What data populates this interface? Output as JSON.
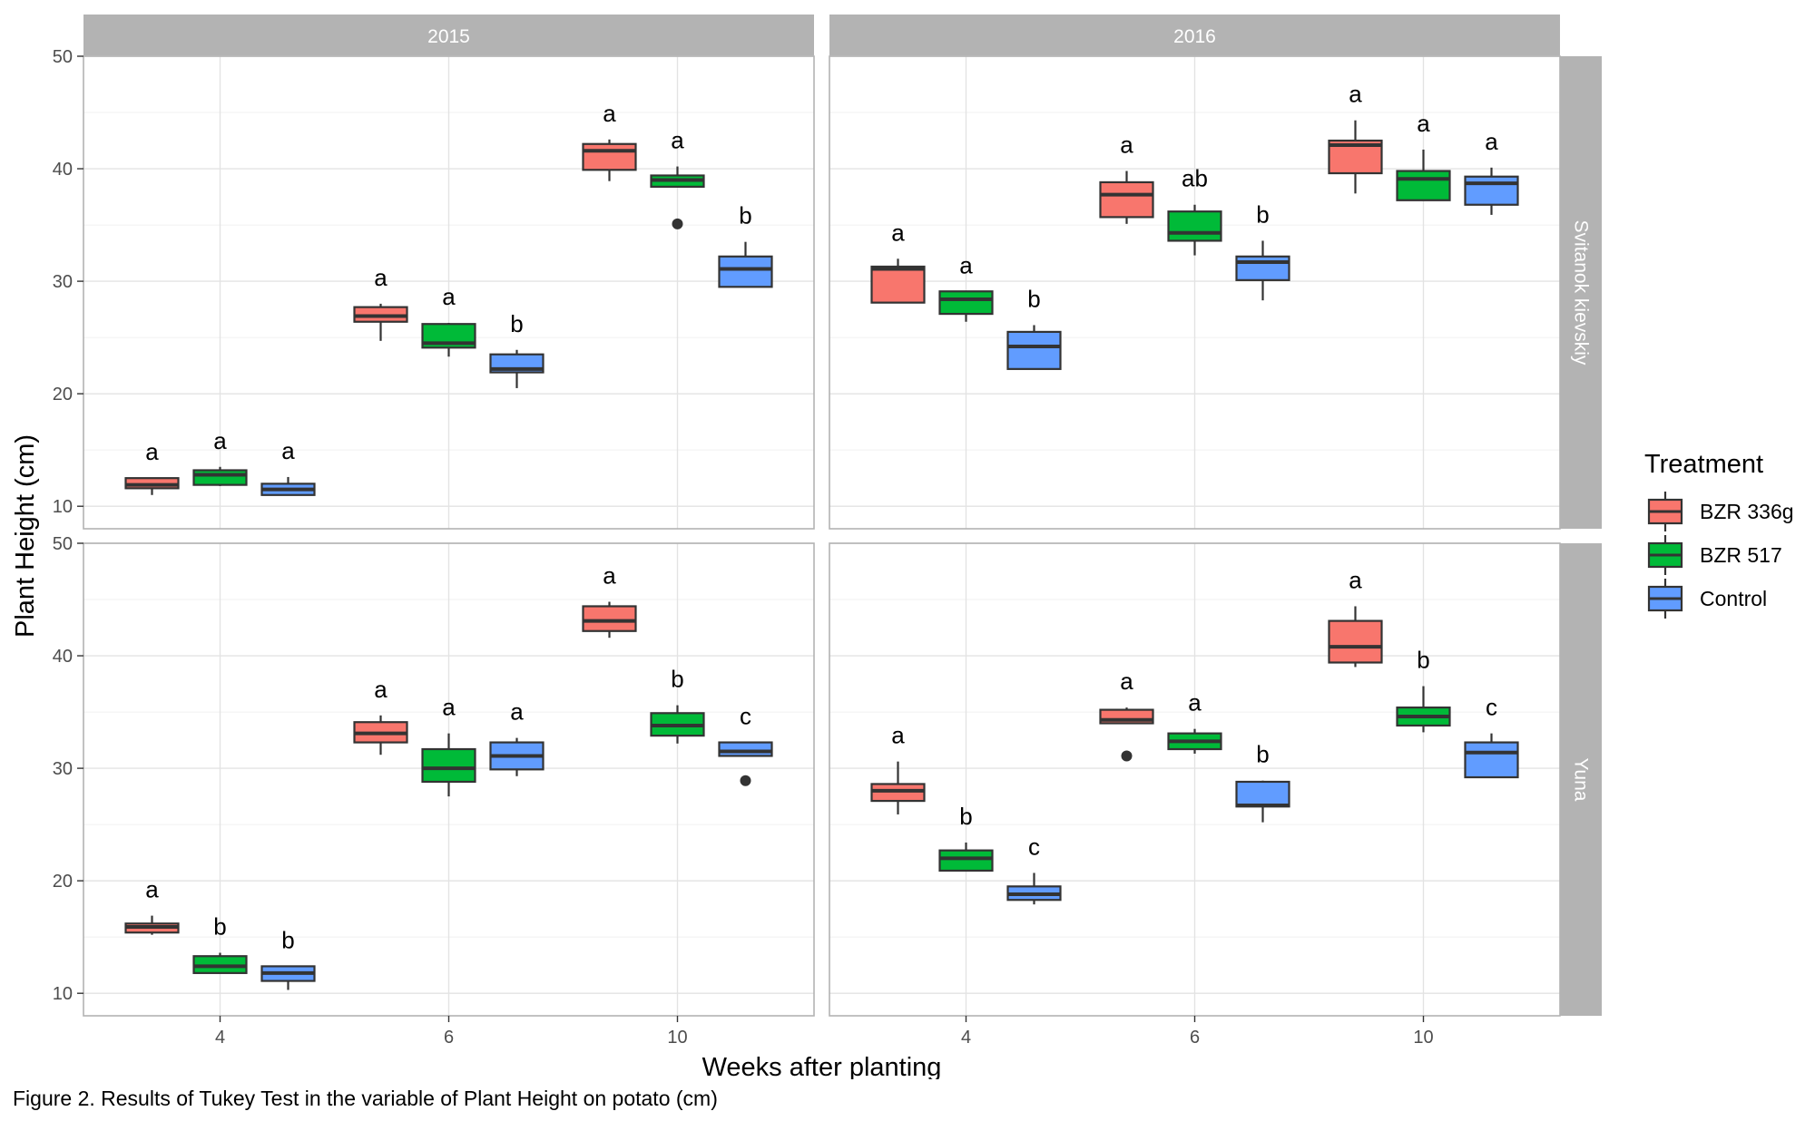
{
  "caption": "Figure 2. Results of Tukey Test in the variable of Plant Height on potato (cm)",
  "chart_data": {
    "type": "boxplot",
    "title": "",
    "xlabel": "Weeks after planting",
    "ylabel": "Plant Height (cm)",
    "ylim": [
      8,
      50
    ],
    "yticks": [
      10,
      20,
      30,
      40,
      50
    ],
    "x_categories": [
      "4",
      "6",
      "10"
    ],
    "column_facets": [
      "2015",
      "2016"
    ],
    "row_facets": [
      "Svitanok kievskiy",
      "Yuna"
    ],
    "grid": true,
    "legend": {
      "title": "Treatment",
      "position": "right",
      "items": [
        {
          "name": "BZR 336g",
          "color": "#F8766D"
        },
        {
          "name": "BZR 517",
          "color": "#00BA38"
        },
        {
          "name": "Control",
          "color": "#619CFF"
        }
      ]
    },
    "panels": [
      {
        "year": "2015",
        "variety": "Svitanok kievskiy",
        "groups": [
          {
            "week": "4",
            "boxes": [
              {
                "treatment": "BZR 336g",
                "min": 11,
                "q1": 11.6,
                "median": 11.9,
                "q3": 12.5,
                "max": 12.5,
                "letter": "a",
                "outliers": []
              },
              {
                "treatment": "BZR 517",
                "min": 11.8,
                "q1": 11.9,
                "median": 12.8,
                "q3": 13.2,
                "max": 13.5,
                "letter": "a",
                "outliers": []
              },
              {
                "treatment": "Control",
                "min": 11,
                "q1": 11,
                "median": 11.5,
                "q3": 12,
                "max": 12.6,
                "letter": "a",
                "outliers": []
              }
            ]
          },
          {
            "week": "6",
            "boxes": [
              {
                "treatment": "BZR 336g",
                "min": 24.7,
                "q1": 26.4,
                "median": 26.9,
                "q3": 27.7,
                "max": 28,
                "letter": "a",
                "outliers": []
              },
              {
                "treatment": "BZR 517",
                "min": 23.3,
                "q1": 24.1,
                "median": 24.5,
                "q3": 26.2,
                "max": 26.3,
                "letter": "a",
                "outliers": []
              },
              {
                "treatment": "Control",
                "min": 20.5,
                "q1": 21.9,
                "median": 22.2,
                "q3": 23.5,
                "max": 23.9,
                "letter": "b",
                "outliers": []
              }
            ]
          },
          {
            "week": "10",
            "boxes": [
              {
                "treatment": "BZR 336g",
                "min": 38.9,
                "q1": 39.9,
                "median": 41.6,
                "q3": 42.2,
                "max": 42.6,
                "letter": "a",
                "outliers": []
              },
              {
                "treatment": "BZR 517",
                "min": 38.4,
                "q1": 38.4,
                "median": 39,
                "q3": 39.4,
                "max": 40.2,
                "letter": "a",
                "outliers": [
                  35.1
                ]
              },
              {
                "treatment": "Control",
                "min": 29.5,
                "q1": 29.5,
                "median": 31.1,
                "q3": 32.2,
                "max": 33.5,
                "letter": "b",
                "outliers": []
              }
            ]
          }
        ]
      },
      {
        "year": "2016",
        "variety": "Svitanok kievskiy",
        "groups": [
          {
            "week": "4",
            "boxes": [
              {
                "treatment": "BZR 336g",
                "min": 28.1,
                "q1": 28.1,
                "median": 31.1,
                "q3": 31.3,
                "max": 32,
                "letter": "a",
                "outliers": []
              },
              {
                "treatment": "BZR 517",
                "min": 26.4,
                "q1": 27.1,
                "median": 28.4,
                "q3": 29.1,
                "max": 29.1,
                "letter": "a",
                "outliers": []
              },
              {
                "treatment": "Control",
                "min": 22.2,
                "q1": 22.2,
                "median": 24.2,
                "q3": 25.5,
                "max": 26.1,
                "letter": "b",
                "outliers": []
              }
            ]
          },
          {
            "week": "6",
            "boxes": [
              {
                "treatment": "BZR 336g",
                "min": 35.1,
                "q1": 35.7,
                "median": 37.7,
                "q3": 38.8,
                "max": 39.8,
                "letter": "a",
                "outliers": []
              },
              {
                "treatment": "BZR 517",
                "min": 32.3,
                "q1": 33.6,
                "median": 34.3,
                "q3": 36.2,
                "max": 36.8,
                "letter": "ab",
                "outliers": []
              },
              {
                "treatment": "Control",
                "min": 28.3,
                "q1": 30.1,
                "median": 31.7,
                "q3": 32.2,
                "max": 33.6,
                "letter": "b",
                "outliers": []
              }
            ]
          },
          {
            "week": "10",
            "boxes": [
              {
                "treatment": "BZR 336g",
                "min": 37.8,
                "q1": 39.6,
                "median": 42.1,
                "q3": 42.5,
                "max": 44.3,
                "letter": "a",
                "outliers": []
              },
              {
                "treatment": "BZR 517",
                "min": 37.2,
                "q1": 37.2,
                "median": 39.1,
                "q3": 39.8,
                "max": 41.7,
                "letter": "a",
                "outliers": []
              },
              {
                "treatment": "Control",
                "min": 35.9,
                "q1": 36.8,
                "median": 38.7,
                "q3": 39.3,
                "max": 40.1,
                "letter": "a",
                "outliers": []
              }
            ]
          }
        ]
      },
      {
        "year": "2015",
        "variety": "Yuna",
        "groups": [
          {
            "week": "4",
            "boxes": [
              {
                "treatment": "BZR 336g",
                "min": 15.2,
                "q1": 15.4,
                "median": 15.9,
                "q3": 16.2,
                "max": 16.9,
                "letter": "a",
                "outliers": []
              },
              {
                "treatment": "BZR 517",
                "min": 11.8,
                "q1": 11.8,
                "median": 12.4,
                "q3": 13.3,
                "max": 13.6,
                "letter": "b",
                "outliers": []
              },
              {
                "treatment": "Control",
                "min": 10.3,
                "q1": 11.1,
                "median": 11.8,
                "q3": 12.4,
                "max": 12.4,
                "letter": "b",
                "outliers": []
              }
            ]
          },
          {
            "week": "6",
            "boxes": [
              {
                "treatment": "BZR 336g",
                "min": 31.2,
                "q1": 32.3,
                "median": 33.1,
                "q3": 34.1,
                "max": 34.7,
                "letter": "a",
                "outliers": []
              },
              {
                "treatment": "BZR 517",
                "min": 27.5,
                "q1": 28.8,
                "median": 30,
                "q3": 31.7,
                "max": 33.1,
                "letter": "a",
                "outliers": []
              },
              {
                "treatment": "Control",
                "min": 29.3,
                "q1": 29.9,
                "median": 31.1,
                "q3": 32.3,
                "max": 32.7,
                "letter": "a",
                "outliers": []
              }
            ]
          },
          {
            "week": "10",
            "boxes": [
              {
                "treatment": "BZR 336g",
                "min": 41.6,
                "q1": 42.2,
                "median": 43.1,
                "q3": 44.4,
                "max": 44.8,
                "letter": "a",
                "outliers": []
              },
              {
                "treatment": "BZR 517",
                "min": 32.2,
                "q1": 32.9,
                "median": 33.8,
                "q3": 34.9,
                "max": 35.6,
                "letter": "b",
                "outliers": []
              },
              {
                "treatment": "Control",
                "min": 31.1,
                "q1": 31.1,
                "median": 31.5,
                "q3": 32.3,
                "max": 32.3,
                "letter": "c",
                "outliers": [
                  28.9
                ]
              }
            ]
          }
        ]
      },
      {
        "year": "2016",
        "variety": "Yuna",
        "groups": [
          {
            "week": "4",
            "boxes": [
              {
                "treatment": "BZR 336g",
                "min": 25.9,
                "q1": 27.1,
                "median": 28,
                "q3": 28.6,
                "max": 30.6,
                "letter": "a",
                "outliers": []
              },
              {
                "treatment": "BZR 517",
                "min": 20.9,
                "q1": 20.9,
                "median": 22,
                "q3": 22.7,
                "max": 23.4,
                "letter": "b",
                "outliers": []
              },
              {
                "treatment": "Control",
                "min": 17.9,
                "q1": 18.3,
                "median": 18.8,
                "q3": 19.5,
                "max": 20.7,
                "letter": "c",
                "outliers": []
              }
            ]
          },
          {
            "week": "6",
            "boxes": [
              {
                "treatment": "BZR 336g",
                "min": 34,
                "q1": 34,
                "median": 34.3,
                "q3": 35.2,
                "max": 35.4,
                "letter": "a",
                "outliers": [
                  31.1
                ]
              },
              {
                "treatment": "BZR 517",
                "min": 31.3,
                "q1": 31.7,
                "median": 32.4,
                "q3": 33.1,
                "max": 33.5,
                "letter": "a",
                "outliers": []
              },
              {
                "treatment": "Control",
                "min": 25.2,
                "q1": 26.6,
                "median": 26.7,
                "q3": 28.8,
                "max": 28.9,
                "letter": "b",
                "outliers": []
              }
            ]
          },
          {
            "week": "10",
            "boxes": [
              {
                "treatment": "BZR 336g",
                "min": 39,
                "q1": 39.4,
                "median": 40.8,
                "q3": 43.1,
                "max": 44.4,
                "letter": "a",
                "outliers": []
              },
              {
                "treatment": "BZR 517",
                "min": 33.2,
                "q1": 33.8,
                "median": 34.6,
                "q3": 35.4,
                "max": 37.3,
                "letter": "b",
                "outliers": []
              },
              {
                "treatment": "Control",
                "min": 29.2,
                "q1": 29.2,
                "median": 31.4,
                "q3": 32.3,
                "max": 33.1,
                "letter": "c",
                "outliers": []
              }
            ]
          }
        ]
      }
    ]
  }
}
